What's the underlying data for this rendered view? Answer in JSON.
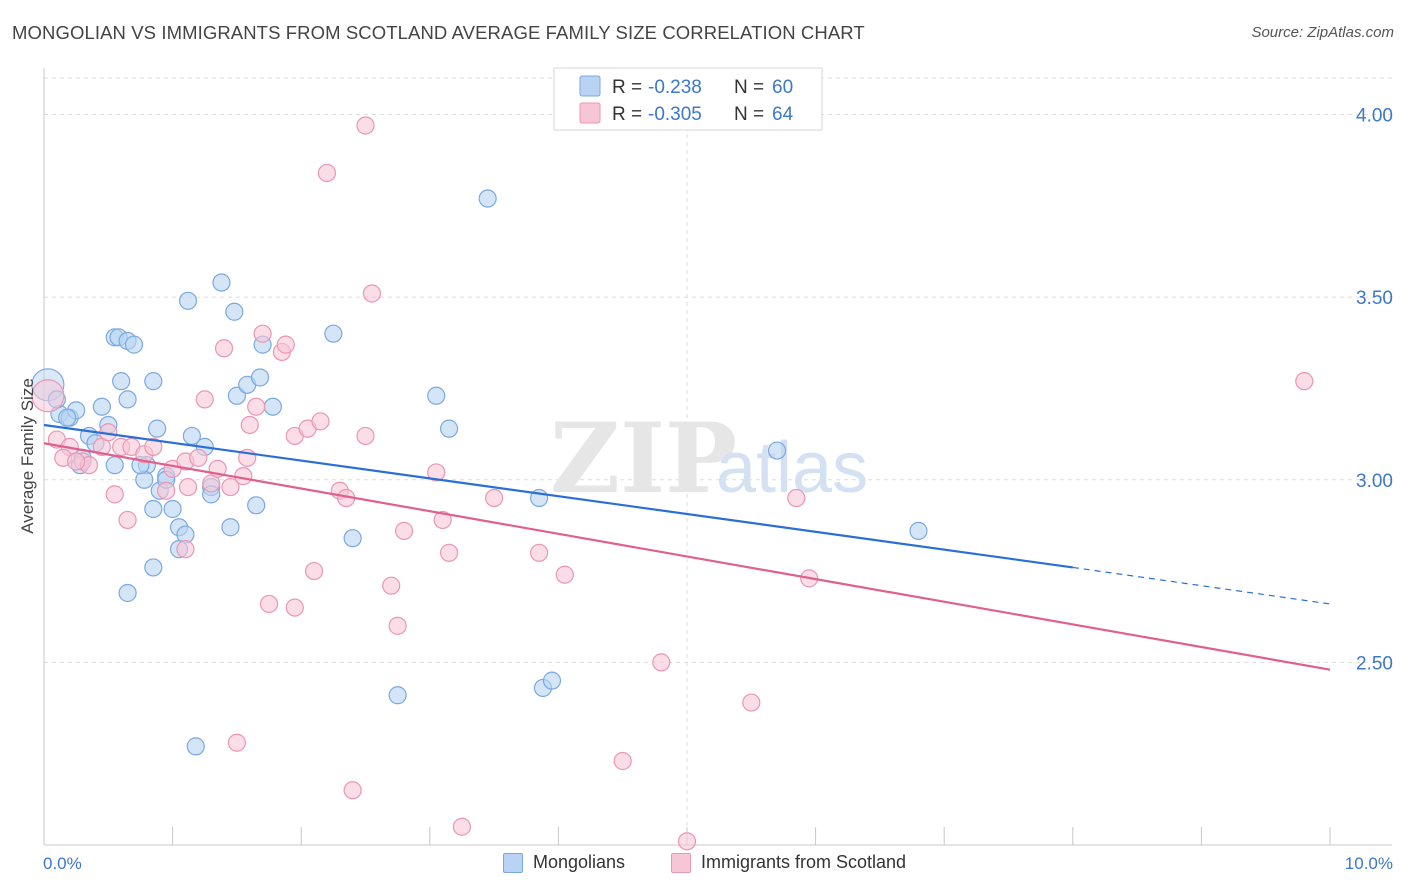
{
  "title": "MONGOLIAN VS IMMIGRANTS FROM SCOTLAND AVERAGE FAMILY SIZE CORRELATION CHART",
  "source": "Source: ZipAtlas.com",
  "watermark": {
    "part1": "ZIP",
    "part2": "atlas"
  },
  "colors": {
    "blue_fill": "#b8d3f3",
    "blue_stroke": "#7aa9e0",
    "blue_line": "#2a6fd6",
    "pink_fill": "#f7c6d6",
    "pink_stroke": "#eb96b3",
    "pink_line": "#e0608c",
    "tick_text": "#3c78c8",
    "grid": "#dcdcdc"
  },
  "legend_top": [
    {
      "r_label": "R =",
      "r_value": "-0.238",
      "n_label": "N =",
      "n_value": "60"
    },
    {
      "r_label": "R =",
      "r_value": "-0.305",
      "n_label": "N =",
      "n_value": "64"
    }
  ],
  "legend_bottom": [
    "Mongolians",
    "Immigrants from Scotland"
  ],
  "chart_data": {
    "type": "scatter",
    "title": "MONGOLIAN VS IMMIGRANTS FROM SCOTLAND AVERAGE FAMILY SIZE CORRELATION CHART",
    "xlabel": "",
    "ylabel": "Average Family Size",
    "xlim": [
      0,
      10
    ],
    "ylim": [
      2.0,
      4.1
    ],
    "x_tick_labels": [
      "0.0%",
      "10.0%"
    ],
    "y_ticks": [
      2.5,
      3.0,
      3.5,
      4.0
    ],
    "y_tick_labels": [
      "2.50",
      "3.00",
      "3.50",
      "4.00"
    ],
    "grid": true,
    "legend_position": "top-center",
    "series": [
      {
        "name": "Mongolians",
        "r": -0.238,
        "n": 60,
        "trend": {
          "x_start": 0.0,
          "y_start": 3.15,
          "x_solid_end": 8.0,
          "y_solid_end": 2.76,
          "x_end": 10.0,
          "y_end": 2.66
        },
        "points": [
          [
            0.03,
            3.26
          ],
          [
            0.12,
            3.18
          ],
          [
            0.2,
            3.17
          ],
          [
            0.25,
            3.19
          ],
          [
            0.1,
            3.22
          ],
          [
            0.35,
            3.12
          ],
          [
            0.3,
            3.06
          ],
          [
            0.5,
            3.15
          ],
          [
            0.55,
            3.04
          ],
          [
            0.45,
            3.2
          ],
          [
            0.65,
            3.22
          ],
          [
            0.6,
            3.27
          ],
          [
            0.55,
            3.39
          ],
          [
            0.58,
            3.39
          ],
          [
            0.65,
            3.38
          ],
          [
            0.7,
            3.37
          ],
          [
            0.85,
            3.27
          ],
          [
            0.88,
            3.14
          ],
          [
            0.8,
            3.04
          ],
          [
            0.78,
            3.0
          ],
          [
            0.85,
            2.92
          ],
          [
            0.95,
            3.01
          ],
          [
            0.9,
            2.97
          ],
          [
            1.0,
            2.92
          ],
          [
            1.05,
            2.87
          ],
          [
            1.1,
            2.85
          ],
          [
            1.05,
            2.81
          ],
          [
            0.85,
            2.76
          ],
          [
            0.65,
            2.69
          ],
          [
            1.15,
            3.12
          ],
          [
            1.25,
            3.09
          ],
          [
            1.3,
            2.98
          ],
          [
            1.5,
            3.23
          ],
          [
            1.58,
            3.26
          ],
          [
            1.68,
            3.28
          ],
          [
            1.7,
            3.37
          ],
          [
            1.48,
            3.46
          ],
          [
            1.38,
            3.54
          ],
          [
            1.12,
            3.49
          ],
          [
            1.78,
            3.2
          ],
          [
            2.25,
            3.4
          ],
          [
            1.65,
            2.93
          ],
          [
            1.45,
            2.87
          ],
          [
            2.4,
            2.84
          ],
          [
            3.05,
            3.23
          ],
          [
            3.15,
            3.14
          ],
          [
            3.45,
            3.77
          ],
          [
            3.85,
            2.95
          ],
          [
            3.88,
            2.43
          ],
          [
            3.95,
            2.45
          ],
          [
            2.75,
            2.41
          ],
          [
            1.18,
            2.27
          ],
          [
            5.7,
            3.08
          ],
          [
            6.8,
            2.86
          ],
          [
            0.75,
            3.04
          ],
          [
            0.4,
            3.1
          ],
          [
            0.18,
            3.17
          ],
          [
            0.28,
            3.04
          ],
          [
            0.95,
            3.0
          ],
          [
            1.3,
            2.96
          ]
        ]
      },
      {
        "name": "Immigrants from Scotland",
        "r": -0.305,
        "n": 64,
        "trend": {
          "x_start": 0.0,
          "y_start": 3.1,
          "x_end": 10.0,
          "y_end": 2.48
        },
        "points": [
          [
            0.03,
            3.23
          ],
          [
            0.1,
            3.11
          ],
          [
            0.2,
            3.09
          ],
          [
            0.3,
            3.05
          ],
          [
            0.15,
            3.06
          ],
          [
            0.35,
            3.04
          ],
          [
            0.45,
            3.09
          ],
          [
            0.55,
            2.96
          ],
          [
            0.6,
            3.09
          ],
          [
            0.68,
            3.09
          ],
          [
            0.78,
            3.07
          ],
          [
            0.85,
            3.09
          ],
          [
            0.95,
            2.97
          ],
          [
            1.0,
            3.03
          ],
          [
            1.1,
            3.05
          ],
          [
            1.12,
            2.98
          ],
          [
            1.2,
            3.06
          ],
          [
            1.3,
            2.99
          ],
          [
            1.35,
            3.03
          ],
          [
            1.45,
            2.98
          ],
          [
            1.55,
            3.01
          ],
          [
            1.58,
            3.06
          ],
          [
            1.6,
            3.15
          ],
          [
            1.65,
            3.2
          ],
          [
            1.7,
            3.4
          ],
          [
            1.85,
            3.35
          ],
          [
            1.88,
            3.37
          ],
          [
            1.95,
            3.12
          ],
          [
            2.05,
            3.14
          ],
          [
            2.15,
            3.16
          ],
          [
            2.3,
            2.97
          ],
          [
            2.35,
            2.95
          ],
          [
            2.5,
            3.12
          ],
          [
            2.55,
            3.51
          ],
          [
            2.5,
            3.97
          ],
          [
            2.2,
            3.84
          ],
          [
            2.1,
            2.75
          ],
          [
            1.95,
            2.65
          ],
          [
            1.75,
            2.66
          ],
          [
            2.7,
            2.71
          ],
          [
            2.75,
            2.6
          ],
          [
            2.8,
            2.86
          ],
          [
            3.05,
            3.02
          ],
          [
            3.1,
            2.89
          ],
          [
            3.15,
            2.8
          ],
          [
            3.5,
            2.95
          ],
          [
            3.85,
            2.8
          ],
          [
            4.05,
            2.74
          ],
          [
            4.5,
            2.23
          ],
          [
            4.8,
            2.5
          ],
          [
            5.5,
            2.39
          ],
          [
            5.85,
            2.95
          ],
          [
            5.95,
            2.73
          ],
          [
            9.8,
            3.27
          ],
          [
            2.4,
            2.15
          ],
          [
            3.25,
            2.05
          ],
          [
            5.0,
            2.01
          ],
          [
            1.5,
            2.28
          ],
          [
            1.1,
            2.81
          ],
          [
            0.65,
            2.89
          ],
          [
            1.4,
            3.36
          ],
          [
            1.25,
            3.22
          ],
          [
            0.5,
            3.13
          ],
          [
            0.25,
            3.05
          ]
        ]
      }
    ]
  }
}
